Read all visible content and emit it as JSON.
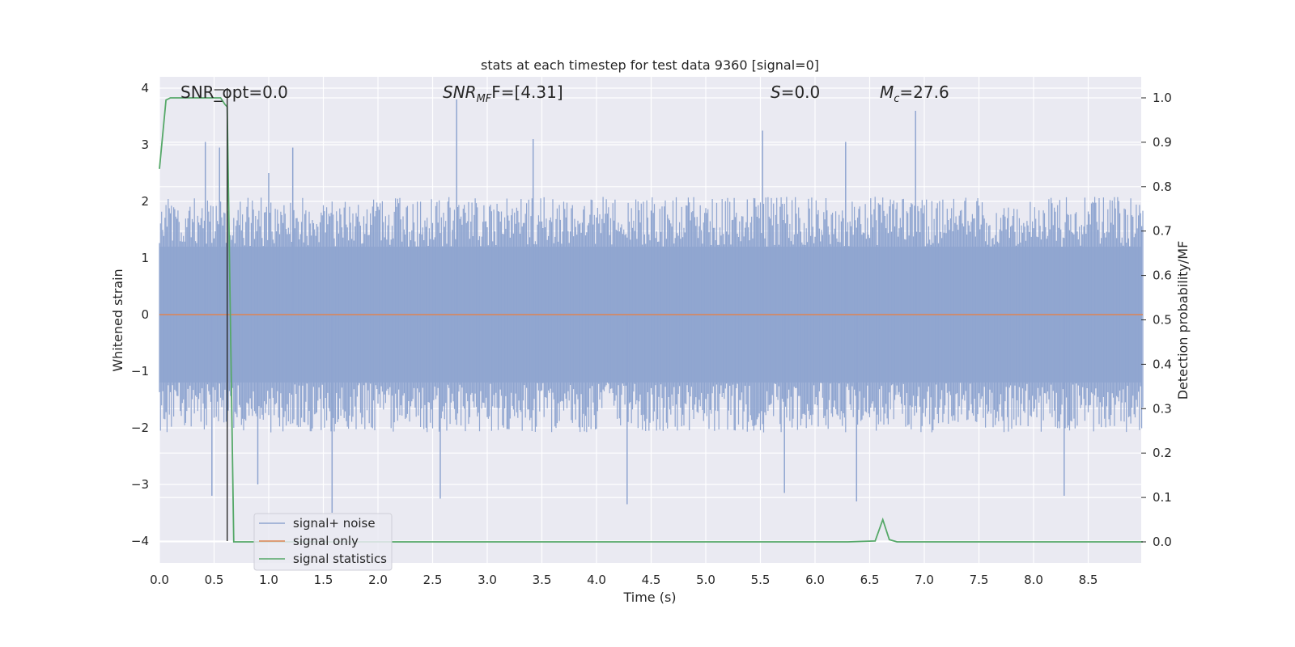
{
  "chart_data": {
    "type": "line",
    "title": "stats at each timestep for test data 9360 [signal=0]",
    "xlabel": "Time (s)",
    "ylabel": "Whitened strain",
    "y2label": "Detection probability/MF",
    "xlim": [
      0.0,
      9.0
    ],
    "ylim": [
      -4.4,
      4.2
    ],
    "y2lim": [
      -0.05,
      1.05
    ],
    "grid": true,
    "legend_position": "lower-left",
    "x_ticks": [
      "0.0",
      "0.5",
      "1.0",
      "1.5",
      "2.0",
      "2.5",
      "3.0",
      "3.5",
      "4.0",
      "4.5",
      "5.0",
      "5.5",
      "6.0",
      "6.5",
      "7.0",
      "7.5",
      "8.0",
      "8.5"
    ],
    "y_ticks": [
      "−4",
      "−3",
      "−2",
      "−1",
      "0",
      "1",
      "2",
      "3",
      "4"
    ],
    "y2_ticks": [
      "0.0",
      "0.1",
      "0.2",
      "0.3",
      "0.4",
      "0.5",
      "0.6",
      "0.7",
      "0.8",
      "0.9",
      "1.0"
    ],
    "annotations": {
      "snr_opt": "SNR_opt=0.0",
      "snr_mf_main": "SNR",
      "snr_mf_sub": "MF",
      "snr_mf_rest": "F=[4.31]",
      "s_main": "S",
      "s_rest": "=0.0",
      "mc_main": "M",
      "mc_sub": "c",
      "mc_rest": "=27.6"
    },
    "series": [
      {
        "name": "signal+ noise",
        "color": "#8fa5d0",
        "axis": "left",
        "description": "whitened strain noise envelope",
        "envelope": {
          "x_step": 0.02,
          "typical_high": 1.6,
          "typical_low": -1.6,
          "peaks_high": [
            [
              0.42,
              3.05
            ],
            [
              0.55,
              2.95
            ],
            [
              1.0,
              2.5
            ],
            [
              1.22,
              2.95
            ],
            [
              2.72,
              3.8
            ],
            [
              3.42,
              3.1
            ],
            [
              5.52,
              3.25
            ],
            [
              6.28,
              3.05
            ],
            [
              6.92,
              3.6
            ]
          ],
          "peaks_low": [
            [
              0.48,
              -3.2
            ],
            [
              0.9,
              -3.0
            ],
            [
              1.58,
              -3.5
            ],
            [
              2.57,
              -3.25
            ],
            [
              4.28,
              -3.35
            ],
            [
              5.72,
              -3.15
            ],
            [
              6.38,
              -3.3
            ],
            [
              8.28,
              -3.2
            ]
          ]
        }
      },
      {
        "name": "signal only",
        "color": "#dd8452",
        "axis": "left",
        "x": [
          0.0,
          9.0
        ],
        "y": [
          0.0,
          0.0
        ]
      },
      {
        "name": "signal statistics",
        "color": "#55a868",
        "axis": "right",
        "x": [
          0.0,
          0.06,
          0.1,
          0.2,
          0.3,
          0.4,
          0.5,
          0.56,
          0.6,
          0.62,
          0.68,
          0.75,
          0.8,
          1.0,
          2.0,
          3.0,
          4.0,
          5.0,
          6.0,
          6.3,
          6.55,
          6.62,
          6.68,
          6.75,
          6.8,
          7.0,
          8.0,
          9.0
        ],
        "y": [
          0.84,
          0.995,
          1.0,
          1.0,
          1.0,
          1.0,
          1.0,
          1.0,
          0.985,
          0.98,
          0.0,
          0.0,
          0.0,
          0.0,
          0.0,
          0.0,
          0.0,
          0.0,
          0.0,
          0.0,
          0.002,
          0.05,
          0.005,
          0.0,
          0.0,
          0.0,
          0.0,
          0.0
        ]
      }
    ],
    "marker_line": {
      "x": 0.62,
      "y_from": 4.0,
      "y_to": -4.0,
      "color": "#2b2b2b"
    }
  },
  "legend": {
    "items": [
      {
        "label": "signal+ noise",
        "color": "#8fa5d0"
      },
      {
        "label": "signal only",
        "color": "#dd8452"
      },
      {
        "label": "signal statistics",
        "color": "#55a868"
      }
    ]
  }
}
